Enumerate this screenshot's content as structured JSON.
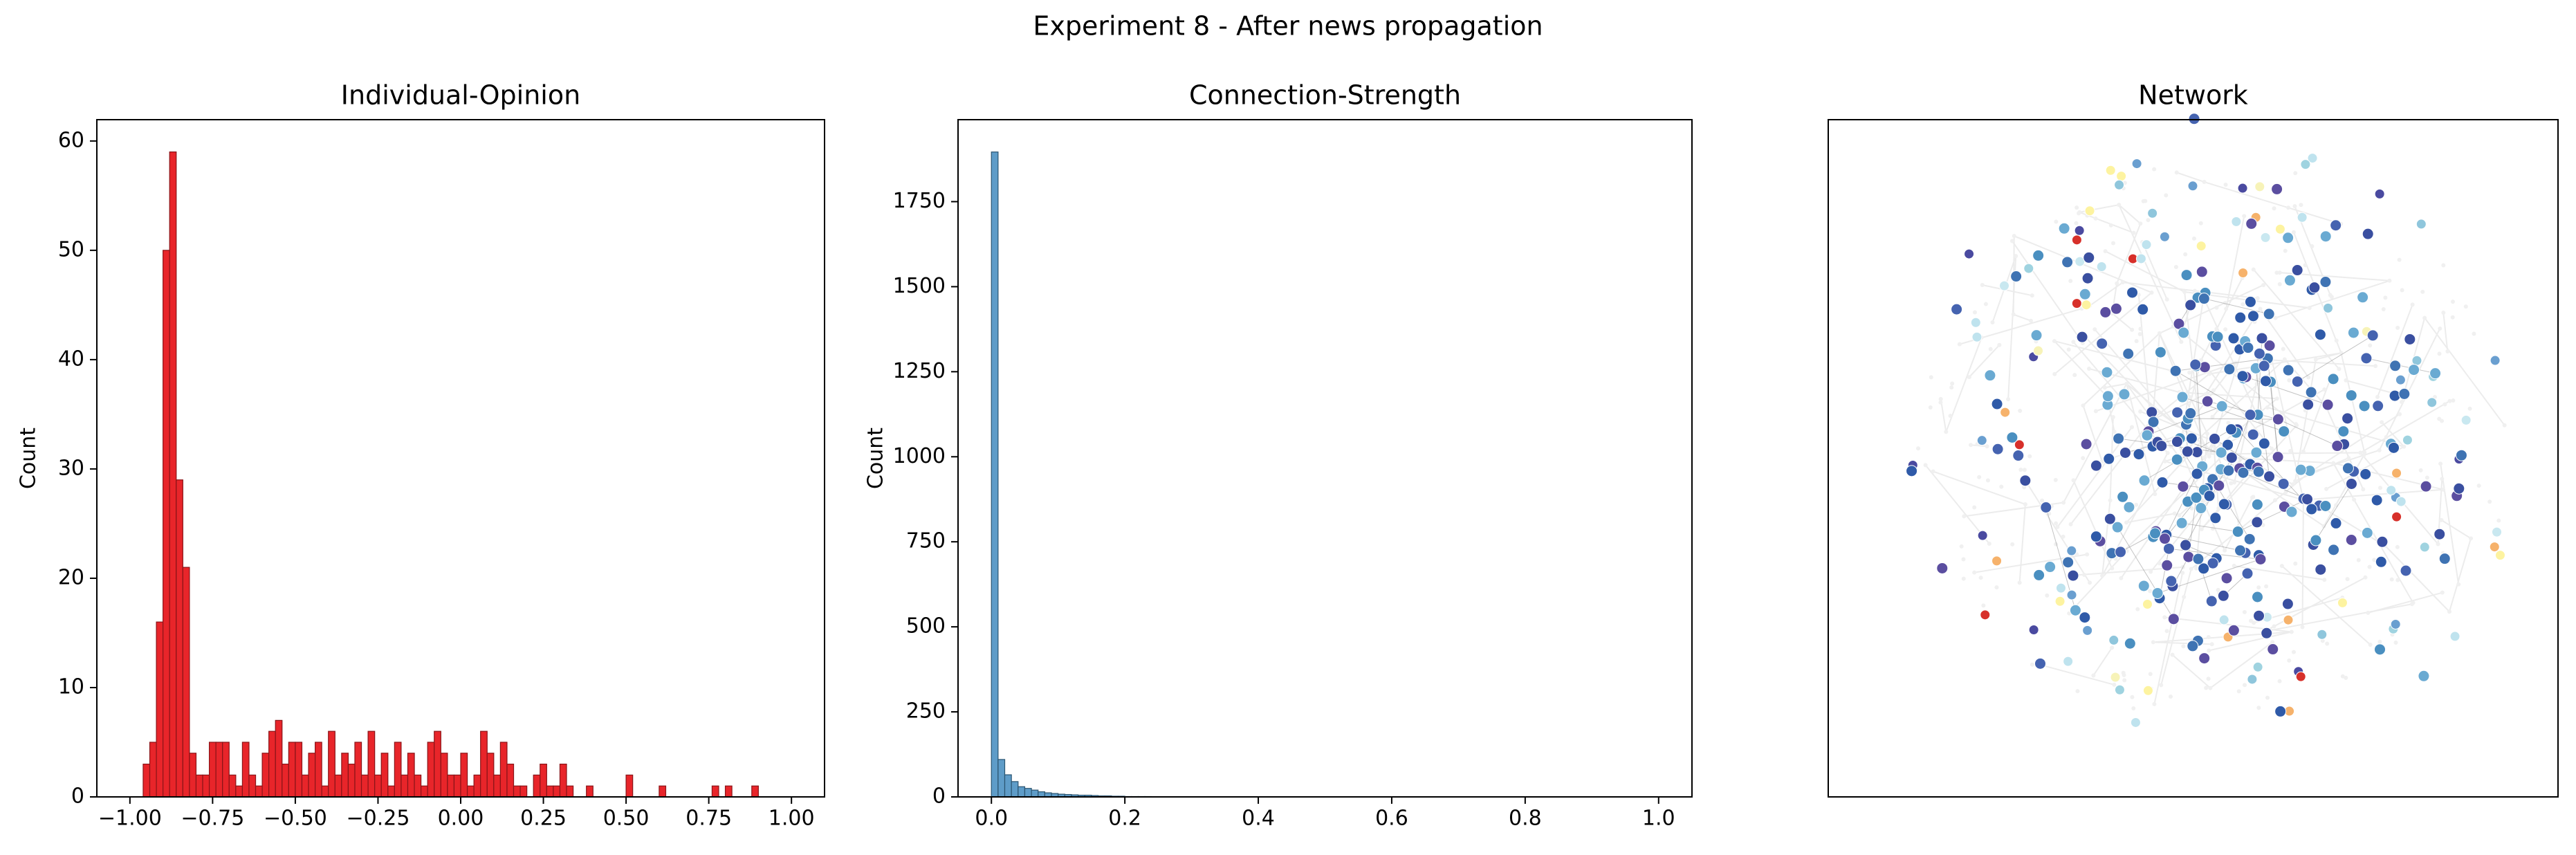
{
  "title": "Experiment 8 - After news propagation",
  "chart_data": [
    {
      "type": "histogram",
      "title": "Individual-Opinion",
      "ylabel": "Count",
      "color": "#e8252a",
      "edgecolor": "#8a1418",
      "bins": [
        -1.0,
        -0.98,
        -0.96,
        -0.94,
        -0.92,
        -0.9,
        -0.88,
        -0.86,
        -0.84,
        -0.82,
        -0.8,
        -0.78,
        -0.76,
        -0.74,
        -0.72,
        -0.7,
        -0.68,
        -0.66,
        -0.64,
        -0.62,
        -0.6,
        -0.58,
        -0.56,
        -0.54,
        -0.52,
        -0.5,
        -0.48,
        -0.46,
        -0.44,
        -0.42,
        -0.4,
        -0.38,
        -0.36,
        -0.34,
        -0.32,
        -0.3,
        -0.28,
        -0.26,
        -0.24,
        -0.22,
        -0.2,
        -0.18,
        -0.16,
        -0.14,
        -0.12,
        -0.1,
        -0.08,
        -0.06,
        -0.04,
        -0.02,
        0.0,
        0.02,
        0.04,
        0.06,
        0.08,
        0.1,
        0.12,
        0.14,
        0.16,
        0.18,
        0.2,
        0.22,
        0.24,
        0.26,
        0.28,
        0.3,
        0.32,
        0.34,
        0.36,
        0.38,
        0.4,
        0.42,
        0.44,
        0.46,
        0.48,
        0.5,
        0.52,
        0.54,
        0.56,
        0.58,
        0.6,
        0.62,
        0.64,
        0.66,
        0.68,
        0.7,
        0.72,
        0.74,
        0.76,
        0.78,
        0.8,
        0.82,
        0.84,
        0.86,
        0.88,
        0.9,
        0.92,
        0.94,
        0.96,
        0.98,
        1.0
      ],
      "values": [
        0,
        0,
        3,
        5,
        16,
        50,
        59,
        29,
        21,
        4,
        2,
        2,
        5,
        5,
        5,
        2,
        1,
        5,
        2,
        1,
        4,
        6,
        7,
        3,
        5,
        5,
        2,
        4,
        5,
        1,
        6,
        2,
        4,
        3,
        5,
        2,
        6,
        2,
        4,
        1,
        5,
        2,
        4,
        2,
        1,
        5,
        6,
        4,
        2,
        2,
        4,
        1,
        2,
        6,
        4,
        2,
        5,
        3,
        1,
        1,
        0,
        2,
        3,
        1,
        1,
        3,
        1,
        0,
        0,
        1,
        0,
        0,
        0,
        0,
        0,
        2,
        0,
        0,
        0,
        0,
        1,
        0,
        0,
        0,
        0,
        0,
        0,
        0,
        1,
        0,
        1,
        0,
        0,
        0,
        1,
        0,
        0,
        0,
        0,
        0
      ],
      "xlim": [
        -1.1,
        1.1
      ],
      "xticks": [
        {
          "value": -1.0,
          "label": "−1.00"
        },
        {
          "value": -0.75,
          "label": "−0.75"
        },
        {
          "value": -0.5,
          "label": "−0.50"
        },
        {
          "value": -0.25,
          "label": "−0.25"
        },
        {
          "value": 0.0,
          "label": "0.00"
        },
        {
          "value": 0.25,
          "label": "0.25"
        },
        {
          "value": 0.5,
          "label": "0.50"
        },
        {
          "value": 0.75,
          "label": "0.75"
        },
        {
          "value": 1.0,
          "label": "1.00"
        }
      ],
      "ylim": [
        0,
        61.95
      ],
      "yticks": [
        0,
        10,
        20,
        30,
        40,
        50,
        60
      ]
    },
    {
      "type": "histogram",
      "title": "Connection-Strength",
      "ylabel": "Count",
      "color": "#5e9cc8",
      "edgecolor": "#2a5470",
      "bins": [
        0.0,
        0.01,
        0.02,
        0.03,
        0.04,
        0.05,
        0.06,
        0.07,
        0.08,
        0.09,
        0.1,
        0.11,
        0.12,
        0.13,
        0.14,
        0.15,
        0.16,
        0.17,
        0.18,
        0.19,
        0.2,
        0.21,
        0.22,
        0.23,
        0.24,
        0.25,
        0.26,
        0.27,
        0.28,
        0.29,
        0.3,
        0.31,
        0.32,
        0.33,
        0.34,
        0.35,
        0.36,
        0.37,
        0.38,
        0.39,
        0.4,
        0.41,
        0.42,
        0.43,
        0.44,
        0.45,
        0.46,
        0.47,
        0.48,
        0.49,
        0.5,
        0.51,
        0.52,
        0.53,
        0.54,
        0.55,
        0.56,
        0.57,
        0.58,
        0.59,
        0.6,
        0.61,
        0.62,
        0.63,
        0.64,
        0.65,
        0.66,
        0.67,
        0.68,
        0.69,
        0.7,
        0.71,
        0.72,
        0.73,
        0.74,
        0.75,
        0.76,
        0.77,
        0.78,
        0.79,
        0.8,
        0.81,
        0.82,
        0.83,
        0.84,
        0.85,
        0.86,
        0.87,
        0.88,
        0.89,
        0.9,
        0.91,
        0.92,
        0.93,
        0.94,
        0.95,
        0.96,
        0.97,
        0.98,
        0.99,
        1.0
      ],
      "values": [
        1896,
        110,
        65,
        45,
        30,
        25,
        20,
        15,
        12,
        10,
        8,
        7,
        6,
        5,
        5,
        4,
        3,
        3,
        2,
        2,
        1,
        1,
        1,
        1,
        0,
        0,
        0,
        0,
        0,
        0,
        0,
        0,
        0,
        0,
        0,
        0,
        0,
        0,
        0,
        0,
        0,
        0,
        0,
        0,
        0,
        0,
        0,
        0,
        0,
        0,
        0,
        0,
        0,
        0,
        0,
        0,
        0,
        0,
        0,
        0,
        0,
        0,
        0,
        0,
        0,
        0,
        0,
        0,
        0,
        0,
        0,
        0,
        0,
        0,
        0,
        0,
        0,
        0,
        0,
        0,
        0,
        0,
        0,
        0,
        0,
        0,
        0,
        0,
        0,
        0,
        0,
        0,
        0,
        0,
        0,
        0,
        0,
        0,
        0,
        0
      ],
      "xlim": [
        -0.05,
        1.05
      ],
      "xticks": [
        {
          "value": 0.0,
          "label": "0.0"
        },
        0.2,
        0.4,
        0.6,
        0.8,
        {
          "value": 1.0,
          "label": "1.0"
        }
      ],
      "ylim": [
        0,
        1991
      ],
      "yticks": [
        0,
        250,
        500,
        750,
        1000,
        1250,
        1500,
        1750
      ]
    },
    {
      "type": "network",
      "title": "Network"
    }
  ]
}
